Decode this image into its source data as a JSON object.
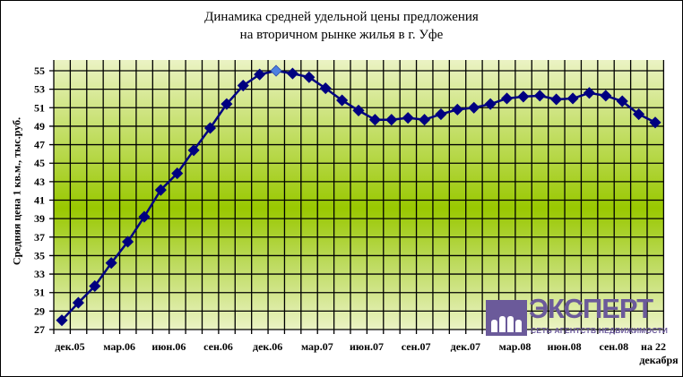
{
  "chart_data": {
    "type": "line",
    "title": "Динамика средней удельной цены предложения на вторичном рынке жилья в г. Уфе",
    "title_lines": [
      "Динамика средней удельной цены предложения",
      "на вторичном рынке жилья в г. Уфе"
    ],
    "xlabel": "",
    "ylabel": "Средняя цена 1 кв.м., тыс.руб.",
    "ylim": [
      27,
      55
    ],
    "yticks": [
      27,
      29,
      31,
      33,
      35,
      37,
      39,
      41,
      43,
      45,
      47,
      49,
      51,
      53,
      55
    ],
    "grid": true,
    "x_tick_labels": [
      "дек.05",
      "мар.06",
      "июн.06",
      "сен.06",
      "дек.06",
      "мар.07",
      "июн.07",
      "сен.07",
      "дек.07",
      "мар.08",
      "июн.08",
      "сен.08",
      "на 22 декабря"
    ],
    "x": [
      "дек.05",
      "янв.06",
      "фев.06",
      "мар.06",
      "апр.06",
      "май.06",
      "июн.06",
      "июл.06",
      "авг.06",
      "сен.06",
      "окт.06",
      "ноя.06",
      "дек.06",
      "янв.07",
      "фев.07",
      "мар.07",
      "апр.07",
      "май.07",
      "июн.07",
      "июл.07",
      "авг.07",
      "сен.07",
      "окт.07",
      "ноя.07",
      "дек.07",
      "янв.08",
      "фев.08",
      "мар.08",
      "апр.08",
      "май.08",
      "июн.08",
      "июл.08",
      "авг.08",
      "сен.08",
      "окт.08",
      "ноя.08",
      "на 22 декабря"
    ],
    "series": [
      {
        "name": "Средняя цена 1 кв.м.",
        "color": "#000080",
        "highlight_color": "#4f81e0",
        "highlight_index": 13,
        "values": [
          28.0,
          29.9,
          31.7,
          34.2,
          36.5,
          39.2,
          42.1,
          43.9,
          46.4,
          48.8,
          51.4,
          53.4,
          54.6,
          55.0,
          54.7,
          54.3,
          53.1,
          51.8,
          50.7,
          49.7,
          49.7,
          49.9,
          49.7,
          50.3,
          50.8,
          51.0,
          51.4,
          52.0,
          52.2,
          52.3,
          51.9,
          52.0,
          52.6,
          52.3,
          51.7,
          50.3,
          49.4
        ]
      }
    ]
  },
  "logo": {
    "word": "ЭКСПЕРТ",
    "subtitle": "СЕТЬ АГЕНТСТВ НЕДВИЖИМОСТИ",
    "color": "#6b5a9a"
  },
  "colors": {
    "plot_light": "#ebf3c4",
    "plot_dark": "#99c800",
    "grid": "#000000",
    "line": "#000080"
  }
}
